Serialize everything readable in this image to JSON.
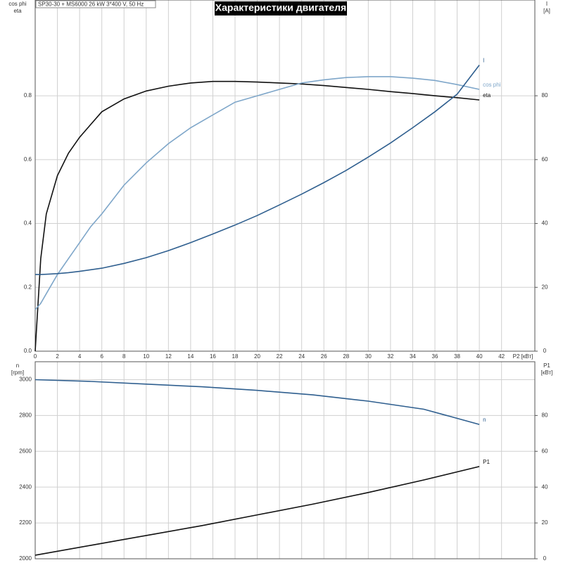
{
  "chart_data": [
    {
      "type": "line",
      "title": "Характеристики двигателя",
      "subtitle": "SP30-30 + MS6000   26 kW   3*400 V, 50 Hz",
      "xlabel": "P2 [кВт]",
      "ylabel": [
        "cos phi",
        "eta"
      ],
      "y2label": [
        "I",
        "[A]"
      ],
      "x": [
        0,
        0.5,
        1,
        2,
        3,
        4,
        5,
        6,
        8,
        10,
        12,
        14,
        16,
        18,
        20,
        22,
        24,
        26,
        28,
        30,
        32,
        34,
        36,
        38,
        40
      ],
      "xlim": [
        0,
        45
      ],
      "xticks": [
        0,
        2,
        4,
        6,
        8,
        10,
        12,
        14,
        16,
        18,
        20,
        22,
        24,
        26,
        28,
        30,
        32,
        34,
        36,
        38,
        40,
        42
      ],
      "ylim": [
        0,
        1.1
      ],
      "yticks": [
        {
          "value": 0,
          "label": "0.0"
        },
        0.2,
        0.4,
        0.6,
        0.8
      ],
      "y2lim": [
        0,
        110
      ],
      "y2ticks": [
        0,
        20,
        40,
        60,
        80
      ],
      "grid": true,
      "series": [
        {
          "name": "eta",
          "color": "#111111",
          "values": [
            0,
            0.29,
            0.43,
            0.55,
            0.62,
            0.67,
            0.71,
            0.75,
            0.79,
            0.815,
            0.83,
            0.84,
            0.845,
            0.845,
            0.843,
            0.84,
            0.837,
            0.832,
            0.826,
            0.82,
            0.813,
            0.807,
            0.8,
            0.794,
            0.787
          ]
        },
        {
          "name": "cos phi",
          "color": "#7ea6c9",
          "values": [
            0.13,
            0.15,
            0.18,
            0.24,
            0.29,
            0.34,
            0.39,
            0.43,
            0.52,
            0.59,
            0.65,
            0.7,
            0.74,
            0.78,
            0.8,
            0.82,
            0.84,
            0.85,
            0.857,
            0.86,
            0.86,
            0.855,
            0.848,
            0.835,
            0.82
          ]
        },
        {
          "name": "I",
          "color": "#2f5f8f",
          "axis": "y2",
          "values": [
            24,
            24,
            24.1,
            24.3,
            24.6,
            25,
            25.5,
            26,
            27.5,
            29.3,
            31.5,
            34,
            36.7,
            39.5,
            42.5,
            45.8,
            49.2,
            52.8,
            56.6,
            60.8,
            65.2,
            70,
            75,
            80.5,
            89.6
          ]
        }
      ]
    },
    {
      "type": "line",
      "ylabel": [
        "n",
        "[rpm]"
      ],
      "y2label": [
        "P1",
        "[кВт]"
      ],
      "x": [
        0,
        5,
        10,
        15,
        20,
        25,
        30,
        35,
        40
      ],
      "xlim": [
        0,
        45
      ],
      "ylim": [
        2000,
        3100
      ],
      "yticks": [
        2000,
        2200,
        2400,
        2600,
        2800,
        3000
      ],
      "y2lim": [
        0,
        110
      ],
      "y2ticks": [
        0,
        20,
        40,
        60,
        80
      ],
      "grid": true,
      "series": [
        {
          "name": "n",
          "color": "#2f5f8f",
          "values": [
            3000,
            2990,
            2975,
            2960,
            2940,
            2915,
            2880,
            2835,
            2750
          ]
        },
        {
          "name": "P1",
          "color": "#111111",
          "axis": "y2",
          "values": [
            2,
            7.5,
            13,
            18.5,
            24.5,
            30.5,
            37,
            44,
            51.5
          ]
        }
      ]
    }
  ]
}
